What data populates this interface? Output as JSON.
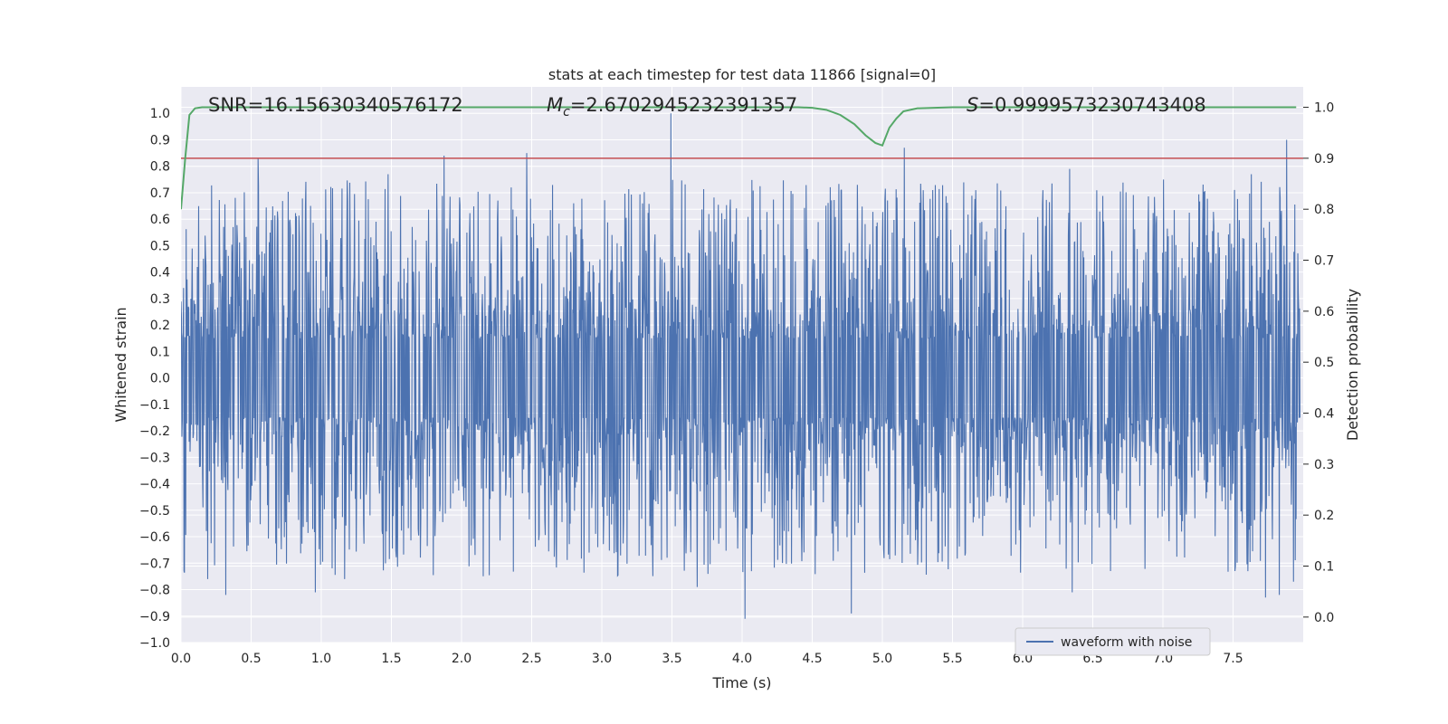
{
  "chart_data": {
    "type": "line",
    "title": "stats at each timestep for test data 11866 [signal=0]",
    "xlabel": "Time (s)",
    "ylabel": "Whitened strain",
    "y2label": "Detection probability",
    "xlim": [
      0.0,
      8.0
    ],
    "ylim": [
      -1.0,
      1.1
    ],
    "y2lim": [
      -0.05,
      1.04
    ],
    "x_ticks": [
      "0.0",
      "0.5",
      "1.0",
      "1.5",
      "2.0",
      "2.5",
      "3.0",
      "3.5",
      "4.0",
      "4.5",
      "5.0",
      "5.5",
      "6.0",
      "6.5",
      "7.0",
      "7.5"
    ],
    "y_ticks": [
      "−1.0",
      "−0.9",
      "−0.8",
      "−0.7",
      "−0.6",
      "−0.5",
      "−0.4",
      "−0.3",
      "−0.2",
      "−0.1",
      "0.0",
      "0.1",
      "0.2",
      "0.3",
      "0.4",
      "0.5",
      "0.6",
      "0.7",
      "0.8",
      "0.9",
      "1.0"
    ],
    "y2_ticks": [
      "0.0",
      "0.1",
      "0.2",
      "0.3",
      "0.4",
      "0.5",
      "0.6",
      "0.7",
      "0.8",
      "0.9",
      "1.0"
    ],
    "grid": true,
    "legend_position": "lower-right",
    "annotations": {
      "snr": "SNR=16.15630340576172",
      "mc": "=2.6702945232391357",
      "s": "=0.9999573230743408",
      "mc_symbol": "M",
      "mc_sub": "c",
      "s_symbol": "S"
    },
    "threshold": {
      "axis": "y2",
      "value": 0.9
    },
    "series": [
      {
        "name": "waveform with noise",
        "axis": "y",
        "color": "#4c72b0",
        "spikes": [
          [
            0.55,
            0.83
          ],
          [
            1.88,
            0.84
          ],
          [
            2.47,
            0.85
          ],
          [
            3.5,
            1.0
          ],
          [
            5.17,
            0.87
          ],
          [
            7.9,
            0.9
          ],
          [
            1.48,
            0.77
          ],
          [
            6.35,
            0.79
          ],
          [
            7.65,
            0.77
          ],
          [
            0.96,
            -0.81
          ],
          [
            0.32,
            -0.82
          ],
          [
            4.03,
            -0.91
          ],
          [
            4.79,
            -0.89
          ],
          [
            6.37,
            -0.81
          ],
          [
            7.75,
            -0.83
          ],
          [
            7.85,
            -0.82
          ],
          [
            3.69,
            -0.79
          ],
          [
            1.17,
            -0.76
          ],
          [
            0.19,
            -0.76
          ],
          [
            7.95,
            -0.77
          ]
        ]
      },
      {
        "axis": "y2",
        "color": "#55a868",
        "x": [
          0.0,
          0.03,
          0.06,
          0.1,
          0.15,
          0.3,
          1.0,
          2.0,
          3.0,
          4.0,
          4.4,
          4.5,
          4.6,
          4.7,
          4.8,
          4.88,
          4.95,
          5.0,
          5.05,
          5.1,
          5.15,
          5.25,
          5.5,
          6.0,
          7.0,
          7.95
        ],
        "y": [
          0.8,
          0.9,
          0.985,
          0.998,
          1.0,
          1.0,
          1.0,
          1.0,
          1.0,
          1.0,
          1.0,
          0.999,
          0.995,
          0.985,
          0.967,
          0.945,
          0.93,
          0.925,
          0.96,
          0.978,
          0.992,
          0.998,
          1.0,
          1.0,
          1.0,
          1.0
        ]
      }
    ]
  }
}
